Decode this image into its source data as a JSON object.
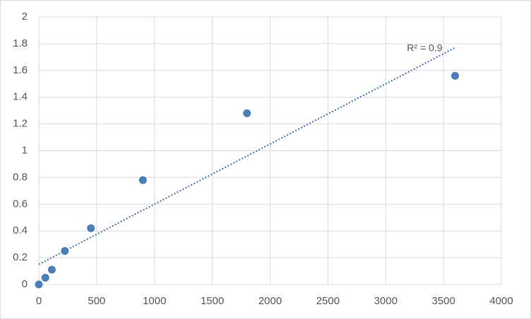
{
  "chart_data": {
    "type": "scatter",
    "x": [
      0,
      56.25,
      112.5,
      225,
      450,
      900,
      1800,
      3600
    ],
    "values": [
      0,
      0.05,
      0.11,
      0.25,
      0.42,
      0.78,
      1.28,
      1.56
    ],
    "color": "#4a7ebb",
    "trendline": {
      "x": [
        0,
        3600
      ],
      "y": [
        0.15,
        1.77
      ]
    },
    "annotation": "R² = 0.9",
    "xlim": [
      0,
      4000
    ],
    "xticks": [
      0,
      500,
      1000,
      1500,
      2000,
      2500,
      3000,
      3500,
      4000
    ],
    "ylim": [
      0,
      2
    ],
    "yticks": [
      0,
      0.2,
      0.4,
      0.6,
      0.8,
      1,
      1.2,
      1.4,
      1.6,
      1.8,
      2
    ],
    "grid": true
  }
}
